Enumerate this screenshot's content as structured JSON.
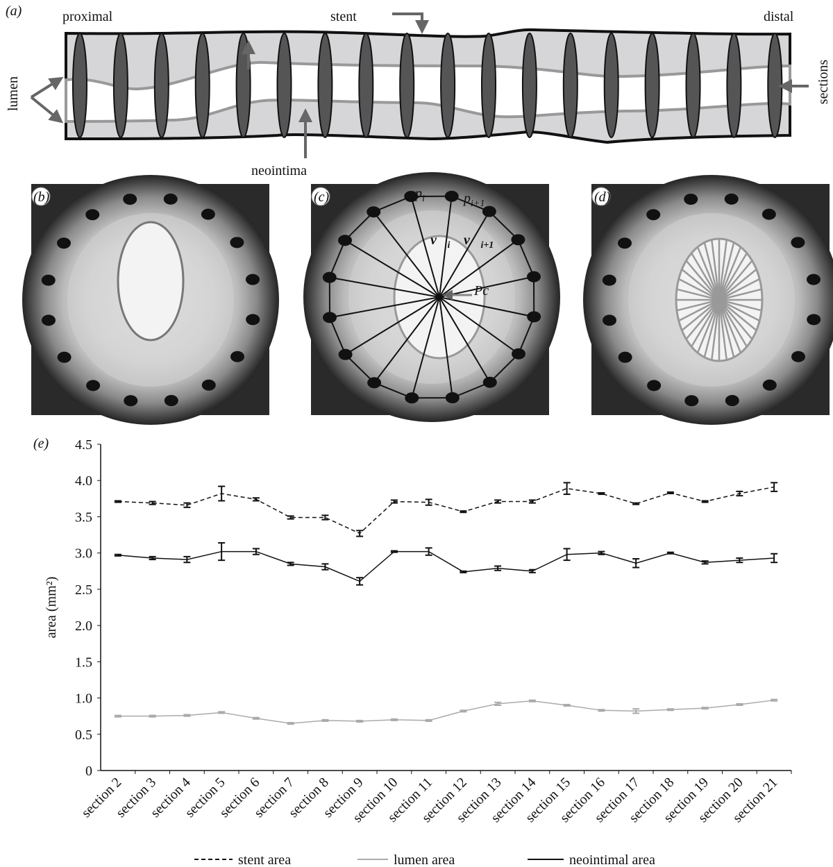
{
  "panel_a": {
    "label": "(a)",
    "proximal": "proximal",
    "stent": "stent",
    "distal": "distal",
    "lumen": "lumen",
    "sections": "sections",
    "neointima": "neointima"
  },
  "panel_b": {
    "label": "(b)"
  },
  "panel_c": {
    "label": "(c)",
    "annotations": [
      {
        "text": "p",
        "sub": "i"
      },
      {
        "text": "p",
        "sub": "i+1"
      },
      {
        "text": "v⃗",
        "sub": "i"
      },
      {
        "text": "v⃗",
        "sub": "i+1"
      },
      {
        "text": "Pc"
      }
    ]
  },
  "panel_d": {
    "label": "(d)"
  },
  "chart_data": {
    "type": "line",
    "panel_label": "(e)",
    "y_label": "area (mm²)",
    "categories": [
      "section 2",
      "section 3",
      "section 4",
      "section 5",
      "section 6",
      "section 7",
      "section 8",
      "section 9",
      "section 10",
      "section 11",
      "section 12",
      "section 13",
      "section 14",
      "section 15",
      "section 16",
      "section 17",
      "section 18",
      "section 19",
      "section 20",
      "section 21"
    ],
    "series": [
      {
        "name": "stent area",
        "color": "#111111",
        "line_style": "dashed",
        "values": [
          3.71,
          3.69,
          3.66,
          3.82,
          3.74,
          3.49,
          3.49,
          3.27,
          3.71,
          3.7,
          3.57,
          3.71,
          3.71,
          3.89,
          3.82,
          3.68,
          3.83,
          3.71,
          3.82,
          3.91
        ],
        "errors": [
          0.01,
          0.02,
          0.03,
          0.1,
          0.02,
          0.02,
          0.03,
          0.04,
          0.02,
          0.04,
          0.01,
          0.02,
          0.02,
          0.08,
          0.01,
          0.01,
          0.01,
          0.01,
          0.03,
          0.06
        ]
      },
      {
        "name": "lumen area",
        "color": "#aaaaaa",
        "line_style": "solid",
        "values": [
          0.75,
          0.75,
          0.76,
          0.8,
          0.72,
          0.65,
          0.69,
          0.68,
          0.7,
          0.69,
          0.82,
          0.92,
          0.96,
          0.9,
          0.83,
          0.82,
          0.84,
          0.86,
          0.91,
          0.97
        ],
        "errors": [
          0.01,
          0.01,
          0.01,
          0.01,
          0.01,
          0.01,
          0.01,
          0.01,
          0.01,
          0.01,
          0.01,
          0.02,
          0.01,
          0.01,
          0.01,
          0.03,
          0.01,
          0.01,
          0.01,
          0.01
        ]
      },
      {
        "name": "neointimal area",
        "color": "#111111",
        "line_style": "solid",
        "values": [
          2.97,
          2.93,
          2.91,
          3.02,
          3.02,
          2.85,
          2.81,
          2.61,
          3.02,
          3.02,
          2.74,
          2.79,
          2.75,
          2.98,
          3.0,
          2.86,
          3.0,
          2.87,
          2.9,
          2.93
        ],
        "errors": [
          0.01,
          0.02,
          0.04,
          0.12,
          0.04,
          0.02,
          0.04,
          0.05,
          0.01,
          0.05,
          0.01,
          0.03,
          0.02,
          0.08,
          0.02,
          0.06,
          0.01,
          0.02,
          0.03,
          0.06
        ]
      }
    ],
    "ylim": [
      0,
      4.5
    ],
    "yticks": [
      0,
      0.5,
      {
        "value": 1,
        "label": "1.0"
      },
      1.5,
      {
        "value": 2,
        "label": "2.0"
      },
      2.5,
      {
        "value": 3,
        "label": "3.0"
      },
      3.5,
      {
        "value": 4,
        "label": "4.0"
      },
      4.5
    ],
    "grid": false
  }
}
